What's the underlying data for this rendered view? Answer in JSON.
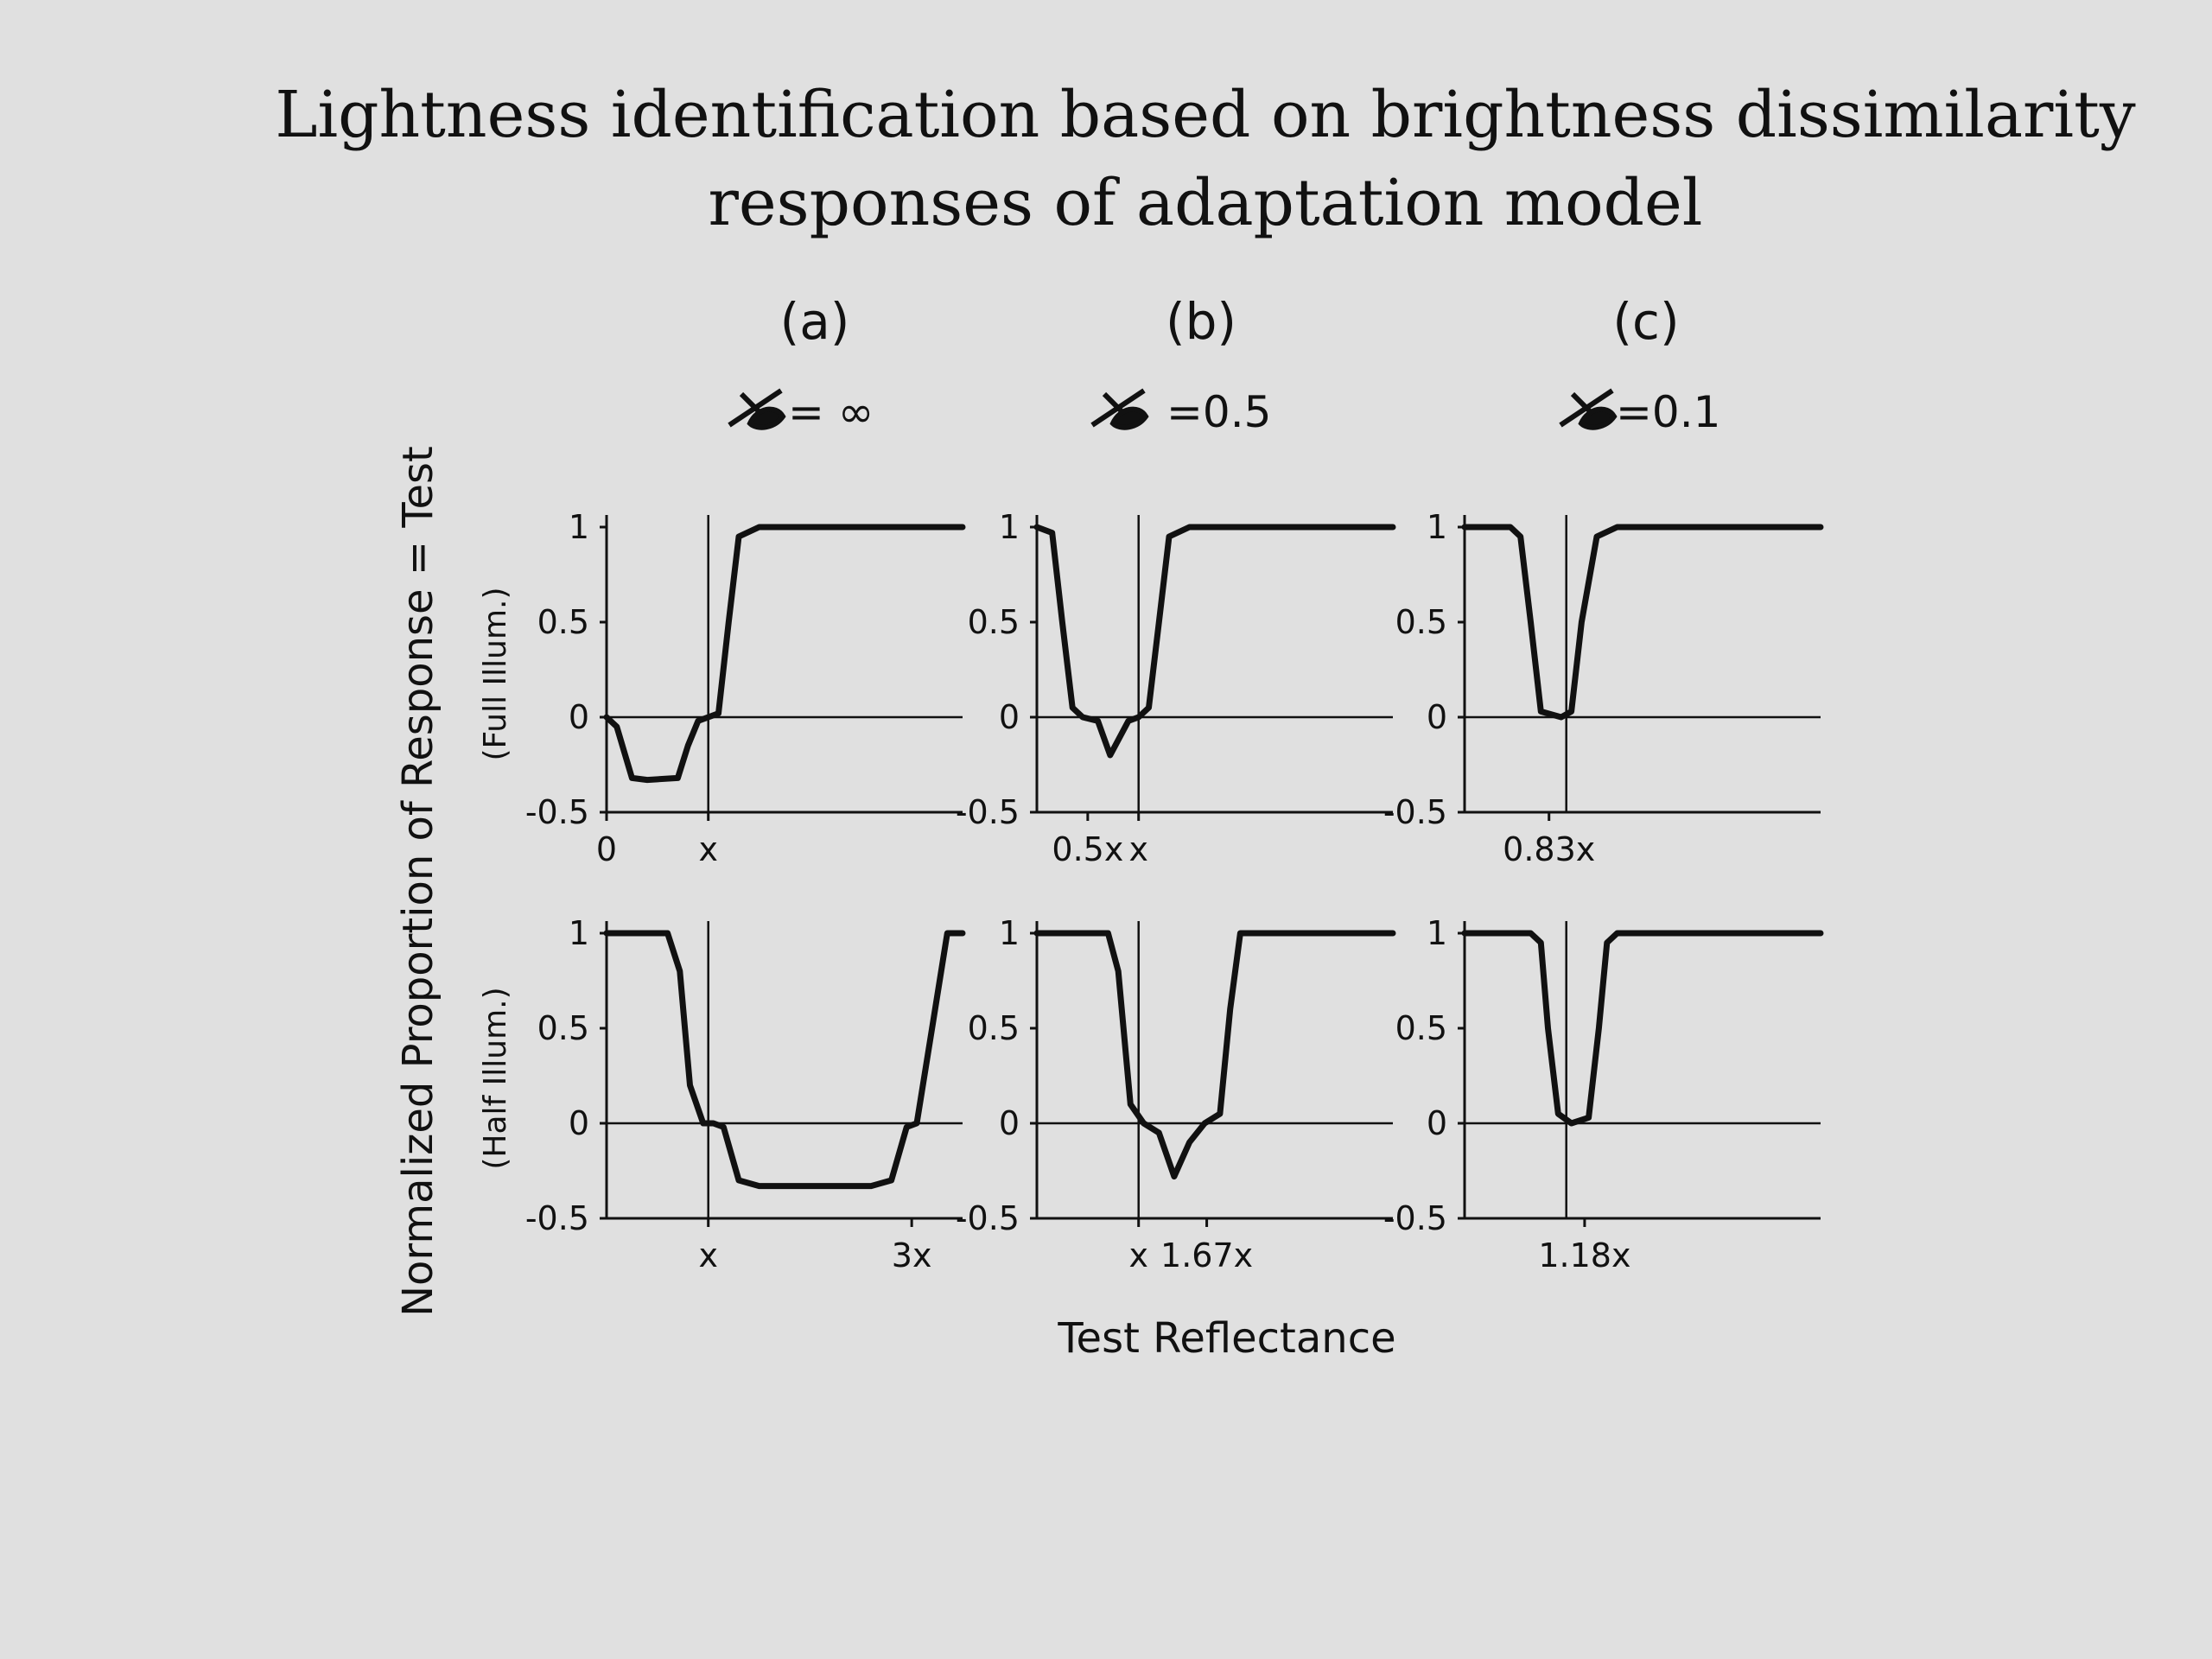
{
  "title_line1": "Lightness identification based on brightness dissimilarity",
  "title_line2": "responses of adaptation model",
  "ylabel": "Normalized Proportion of Response = Test",
  "xlabel": "Test Reflectance",
  "row_labels": [
    "(Full Illum.)",
    "(Half Illum.)"
  ],
  "y_tick_labels": [
    "1",
    "0.5",
    "0",
    "-0.5"
  ],
  "columns": [
    {
      "letter": "(a)",
      "param_value": "= ∞",
      "param_symbol_icon": "lambda-glyph-icon"
    },
    {
      "letter": "(b)",
      "param_value": "=0.5",
      "param_symbol_icon": "lambda-glyph-icon"
    },
    {
      "letter": "(c)",
      "param_value": "=0.1",
      "param_symbol_icon": "lambda-glyph-icon"
    }
  ],
  "chart_data": {
    "type": "line",
    "ylim": [
      -0.5,
      1
    ],
    "y_ticks": [
      1,
      0.5,
      0,
      -0.5
    ],
    "xlim": [
      0,
      3.5
    ],
    "x_reference_line": 1,
    "grid": false,
    "panels": [
      {
        "id": "a-full",
        "row": 0,
        "col": 0,
        "x_ticks": [
          {
            "value": 0,
            "label": "0"
          },
          {
            "value": 1,
            "label": "x"
          }
        ],
        "x": [
          0,
          0.1,
          0.25,
          0.4,
          0.7,
          0.8,
          0.9,
          1.0,
          1.1,
          1.2,
          1.3,
          1.5,
          3.5
        ],
        "y": [
          0,
          -0.05,
          -0.32,
          -0.33,
          -0.32,
          -0.15,
          -0.02,
          0,
          0.02,
          0.5,
          0.95,
          1,
          1
        ]
      },
      {
        "id": "b-full",
        "row": 0,
        "col": 1,
        "x_ticks": [
          {
            "value": 0.5,
            "label": "0.5x"
          },
          {
            "value": 1,
            "label": "x"
          }
        ],
        "x": [
          0,
          0.15,
          0.25,
          0.35,
          0.45,
          0.6,
          0.72,
          0.8,
          0.9,
          1.0,
          1.1,
          1.2,
          1.3,
          1.5,
          3.5
        ],
        "y": [
          1,
          0.97,
          0.5,
          0.05,
          0,
          -0.02,
          -0.2,
          -0.12,
          -0.02,
          0,
          0.05,
          0.5,
          0.95,
          1,
          1
        ]
      },
      {
        "id": "c-full",
        "row": 0,
        "col": 2,
        "x_ticks": [
          {
            "value": 0.83,
            "label": "0.83x"
          }
        ],
        "x": [
          0,
          0.45,
          0.55,
          0.65,
          0.75,
          0.95,
          1.05,
          1.15,
          1.3,
          1.5,
          3.5
        ],
        "y": [
          1,
          1,
          0.95,
          0.5,
          0.03,
          0,
          0.03,
          0.5,
          0.95,
          1,
          1
        ]
      },
      {
        "id": "a-half",
        "row": 1,
        "col": 0,
        "x_ticks": [
          {
            "value": 1,
            "label": "x"
          },
          {
            "value": 3,
            "label": "3x"
          }
        ],
        "x": [
          0,
          0.6,
          0.72,
          0.82,
          0.95,
          1.05,
          1.15,
          1.3,
          1.5,
          2.6,
          2.8,
          2.95,
          3.05,
          3.2,
          3.35,
          3.5
        ],
        "y": [
          1,
          1,
          0.8,
          0.2,
          0,
          0,
          -0.02,
          -0.3,
          -0.33,
          -0.33,
          -0.3,
          -0.02,
          0,
          0.5,
          1,
          1
        ]
      },
      {
        "id": "b-half",
        "row": 1,
        "col": 1,
        "x_ticks": [
          {
            "value": 1,
            "label": "x"
          },
          {
            "value": 1.67,
            "label": "1.67x"
          }
        ],
        "x": [
          0,
          0.7,
          0.8,
          0.92,
          1.05,
          1.2,
          1.35,
          1.5,
          1.65,
          1.8,
          1.9,
          2.0,
          3.5
        ],
        "y": [
          1,
          1,
          0.8,
          0.1,
          0,
          -0.05,
          -0.28,
          -0.1,
          0,
          0.05,
          0.6,
          1,
          1
        ]
      },
      {
        "id": "c-half",
        "row": 1,
        "col": 2,
        "x_ticks": [
          {
            "value": 1.18,
            "label": "1.18x"
          }
        ],
        "x": [
          0,
          0.65,
          0.75,
          0.82,
          0.92,
          1.05,
          1.22,
          1.32,
          1.4,
          1.5,
          3.5
        ],
        "y": [
          1,
          1,
          0.95,
          0.5,
          0.05,
          0,
          0.03,
          0.5,
          0.95,
          1,
          1
        ]
      }
    ]
  }
}
